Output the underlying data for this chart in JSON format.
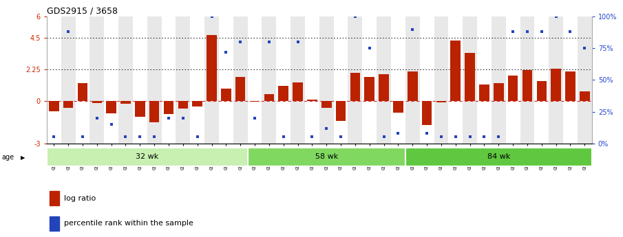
{
  "title": "GDS2915 / 3658",
  "samples": [
    "GSM97277",
    "GSM97278",
    "GSM97279",
    "GSM97280",
    "GSM97281",
    "GSM97282",
    "GSM97283",
    "GSM97284",
    "GSM97285",
    "GSM97286",
    "GSM97287",
    "GSM97288",
    "GSM97289",
    "GSM97290",
    "GSM97291",
    "GSM97292",
    "GSM97293",
    "GSM97294",
    "GSM97295",
    "GSM97296",
    "GSM97297",
    "GSM97298",
    "GSM97299",
    "GSM97300",
    "GSM97301",
    "GSM97302",
    "GSM97303",
    "GSM97304",
    "GSM97305",
    "GSM97306",
    "GSM97307",
    "GSM97308",
    "GSM97309",
    "GSM97310",
    "GSM97311",
    "GSM97312",
    "GSM97313",
    "GSM97314"
  ],
  "log_ratio": [
    -0.7,
    -0.5,
    1.3,
    -0.15,
    -0.85,
    -0.2,
    -1.1,
    -1.5,
    -0.9,
    -0.55,
    -0.4,
    4.7,
    0.9,
    1.7,
    -0.05,
    0.5,
    1.1,
    1.35,
    0.1,
    -0.5,
    -1.4,
    2.0,
    1.7,
    1.9,
    -0.8,
    2.1,
    -1.7,
    -0.1,
    4.3,
    3.4,
    1.2,
    1.3,
    1.8,
    2.2,
    1.4,
    2.3,
    2.1,
    0.7
  ],
  "percentile": [
    5,
    88,
    5,
    20,
    15,
    5,
    5,
    5,
    20,
    20,
    5,
    100,
    72,
    80,
    20,
    80,
    5,
    80,
    5,
    12,
    5,
    100,
    75,
    5,
    8,
    90,
    8,
    5,
    5,
    5,
    5,
    5,
    88,
    88,
    88,
    100,
    88,
    75
  ],
  "groups": [
    {
      "label": "32 wk",
      "start": 0,
      "end": 14,
      "color": "#c8f0b0"
    },
    {
      "label": "58 wk",
      "start": 14,
      "end": 25,
      "color": "#80d860"
    },
    {
      "label": "84 wk",
      "start": 25,
      "end": 38,
      "color": "#60c840"
    }
  ],
  "ylim_left": [
    -3,
    6
  ],
  "ylim_right": [
    0,
    100
  ],
  "yticks_left": [
    -3,
    0,
    2.25,
    4.5,
    6
  ],
  "ytick_labels_left": [
    "-3",
    "0",
    "2.25",
    "4.5",
    "6"
  ],
  "yticks_right": [
    0,
    25,
    50,
    75,
    100
  ],
  "ytick_labels_right": [
    "0%",
    "25%",
    "50%",
    "75%",
    "100%"
  ],
  "hlines": [
    4.5,
    2.25
  ],
  "bar_color": "#bb2200",
  "dot_color": "#2244bb",
  "zero_line_color": "#cc3333",
  "plot_bg": "#ffffff",
  "fig_bg": "#ffffff",
  "xtick_bg_odd": "#e8e8e8",
  "xtick_bg_even": "#ffffff"
}
